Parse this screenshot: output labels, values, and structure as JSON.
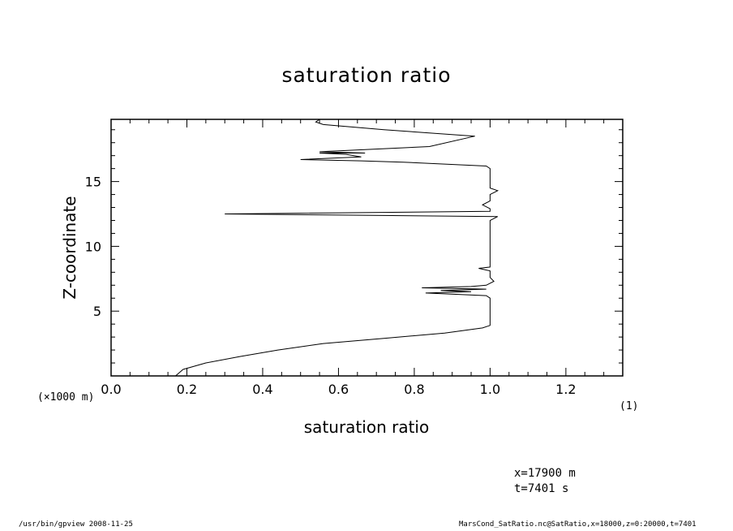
{
  "chart_data": {
    "type": "line",
    "title": "saturation ratio",
    "xlabel": "saturation ratio",
    "ylabel": "Z-coordinate",
    "x_unit_label": "(1)",
    "y_unit_label": "(×1000 m)",
    "xlim": [
      0.0,
      1.35
    ],
    "ylim": [
      0.0,
      19.8
    ],
    "x_ticks": [
      "0.0",
      "0.2",
      "0.4",
      "0.6",
      "0.8",
      "1.0",
      "1.2"
    ],
    "y_ticks": [
      "5",
      "10",
      "15"
    ],
    "grid": false,
    "series": [
      {
        "points": [
          [
            0.17,
            0.0
          ],
          [
            0.19,
            0.5
          ],
          [
            0.25,
            1.0
          ],
          [
            0.34,
            1.5
          ],
          [
            0.44,
            2.0
          ],
          [
            0.56,
            2.5
          ],
          [
            0.72,
            2.9
          ],
          [
            0.88,
            3.3
          ],
          [
            0.98,
            3.7
          ],
          [
            1.0,
            3.9
          ],
          [
            1.0,
            6.0
          ],
          [
            0.99,
            6.2
          ],
          [
            0.83,
            6.4
          ],
          [
            0.95,
            6.5
          ],
          [
            0.87,
            6.6
          ],
          [
            0.99,
            6.7
          ],
          [
            0.82,
            6.8
          ],
          [
            0.95,
            6.9
          ],
          [
            0.99,
            7.0
          ],
          [
            1.01,
            7.3
          ],
          [
            1.0,
            7.6
          ],
          [
            1.0,
            8.1
          ],
          [
            0.97,
            8.3
          ],
          [
            1.0,
            8.4
          ],
          [
            1.0,
            10.5
          ],
          [
            1.0,
            12.0
          ],
          [
            1.02,
            12.3
          ],
          [
            0.3,
            12.5
          ],
          [
            1.0,
            12.7
          ],
          [
            1.0,
            12.9
          ],
          [
            0.98,
            13.2
          ],
          [
            1.0,
            13.5
          ],
          [
            1.0,
            14.0
          ],
          [
            1.02,
            14.3
          ],
          [
            1.0,
            14.5
          ],
          [
            1.0,
            16.0
          ],
          [
            0.99,
            16.2
          ],
          [
            0.77,
            16.5
          ],
          [
            0.66,
            16.6
          ],
          [
            0.5,
            16.7
          ],
          [
            0.66,
            16.9
          ],
          [
            0.62,
            17.1
          ],
          [
            0.55,
            17.2
          ],
          [
            0.67,
            17.2
          ],
          [
            0.55,
            17.3
          ],
          [
            0.84,
            17.7
          ],
          [
            0.96,
            18.5
          ],
          [
            0.72,
            19.0
          ],
          [
            0.56,
            19.4
          ],
          [
            0.54,
            19.6
          ],
          [
            0.55,
            19.8
          ]
        ]
      }
    ]
  },
  "annotations": {
    "x_position": "x=17900  m",
    "time": "t=7401  s"
  },
  "footer": {
    "left": "/usr/bin/gpview   2008-11-25",
    "right": "MarsCond_SatRatio.nc@SatRatio,x=18000,z=0:20000,t=7401"
  }
}
